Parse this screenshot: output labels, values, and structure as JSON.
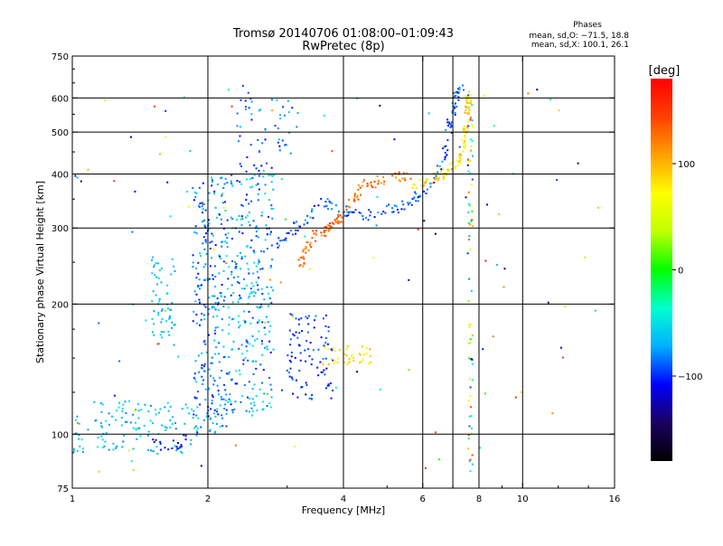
{
  "chart_data": {
    "type": "scatter",
    "title": "Tromsø 20140706 01:08:00–01:09:43",
    "subtitle": "RwPretec (8p)",
    "xlabel": "Frequency [MHz]",
    "ylabel": "Stationary phase Virtual Height [km]",
    "xscale": "log",
    "yscale": "log",
    "xlim": [
      1,
      16
    ],
    "ylim": [
      75,
      750
    ],
    "x_ticks": [
      1,
      2,
      4,
      6,
      8,
      10,
      16
    ],
    "x_tick_labels": [
      "1",
      "2",
      "4",
      "6",
      "8",
      "10",
      "16"
    ],
    "x_grid": [
      2,
      4,
      6,
      7,
      8,
      10
    ],
    "y_ticks": [
      75,
      100,
      200,
      300,
      400,
      500,
      600,
      750
    ],
    "y_tick_labels": [
      "75",
      "100",
      "200",
      "300",
      "400",
      "500",
      "600",
      "750"
    ],
    "y_grid": [
      100,
      200,
      300,
      400,
      500,
      600
    ],
    "grid": true,
    "stats": {
      "heading": "Phases",
      "line1": "mean, sd,O: −71.5, 18.8",
      "line2": "mean, sd,X: 100.1, 26.1"
    },
    "colorbar": {
      "label": "[deg]",
      "range": [
        -180,
        180
      ],
      "ticks": [
        100,
        0,
        -100
      ],
      "tick_labels": [
        "100",
        "0",
        "−100"
      ],
      "colormap": "rainbow",
      "stops": [
        "#000000",
        "#1a0060",
        "#0000ff",
        "#00b0ff",
        "#00ffd0",
        "#00ff00",
        "#c0ff00",
        "#ffff00",
        "#ffa000",
        "#ff4000",
        "#ff0000"
      ]
    },
    "groups": [
      {
        "name": "low-freq cyan traces",
        "freq": [
          1.0,
          1.9
        ],
        "height": [
          90,
          120
        ],
        "phase": [
          -85,
          -40
        ],
        "n": 130,
        "shape": "band"
      },
      {
        "name": "low-freq upper streak",
        "freq": [
          1.5,
          1.7
        ],
        "height": [
          160,
          260
        ],
        "phase": [
          -75,
          -50
        ],
        "n": 60,
        "shape": "band"
      },
      {
        "name": "low-freq bottom dark",
        "freq": [
          1.5,
          1.8
        ],
        "height": [
          92,
          100
        ],
        "phase": [
          -120,
          -100
        ],
        "n": 20,
        "shape": "band"
      },
      {
        "name": "vertical column 2 MHz",
        "freq": [
          1.85,
          2.2
        ],
        "height": [
          100,
          400
        ],
        "phase": [
          -110,
          -50
        ],
        "n": 260,
        "shape": "band"
      },
      {
        "name": "vertical column 2.4 MHz",
        "freq": [
          2.2,
          2.8
        ],
        "height": [
          110,
          420
        ],
        "phase": [
          -110,
          -40
        ],
        "n": 300,
        "shape": "band"
      },
      {
        "name": "high echoes near 2.5 MHz",
        "freq": [
          2.3,
          3.2
        ],
        "height": [
          420,
          620
        ],
        "phase": [
          -110,
          -60
        ],
        "n": 50,
        "shape": "band"
      },
      {
        "name": "F trace blue",
        "points": [
          [
            2.8,
            275
          ],
          [
            3.2,
            305
          ],
          [
            3.6,
            345
          ],
          [
            4.0,
            330
          ],
          [
            4.5,
            320
          ],
          [
            5.0,
            330
          ],
          [
            5.5,
            340
          ],
          [
            6.0,
            360
          ],
          [
            6.4,
            390
          ],
          [
            6.7,
            440
          ],
          [
            6.9,
            520
          ],
          [
            7.1,
            600
          ],
          [
            7.3,
            640
          ]
        ],
        "phase": [
          -115,
          -70
        ],
        "n": 170,
        "shape": "curve",
        "spread": 0.035
      },
      {
        "name": "F trace orange",
        "points": [
          [
            3.2,
            245
          ],
          [
            3.4,
            285
          ],
          [
            3.7,
            300
          ],
          [
            4.0,
            320
          ],
          [
            4.4,
            375
          ],
          [
            5.0,
            390
          ],
          [
            5.6,
            395
          ]
        ],
        "phase": [
          105,
          150
        ],
        "n": 120,
        "shape": "curve",
        "spread": 0.035
      },
      {
        "name": "F trace yellow-green",
        "points": [
          [
            5.6,
            370
          ],
          [
            6.2,
            385
          ],
          [
            6.8,
            405
          ],
          [
            7.3,
            440
          ],
          [
            7.5,
            520
          ],
          [
            7.6,
            620
          ]
        ],
        "phase": [
          60,
          110
        ],
        "n": 110,
        "shape": "curve",
        "spread": 0.03
      },
      {
        "name": "mid blue cluster",
        "freq": [
          3.0,
          3.8
        ],
        "height": [
          120,
          190
        ],
        "phase": [
          -115,
          -80
        ],
        "n": 90,
        "shape": "band"
      },
      {
        "name": "yellow cluster",
        "freq": [
          3.6,
          4.6
        ],
        "height": [
          145,
          160
        ],
        "phase": [
          70,
          100
        ],
        "n": 40,
        "shape": "band"
      },
      {
        "name": "vertical line 7.6 MHz",
        "freq": [
          7.55,
          7.75
        ],
        "height": [
          80,
          640
        ],
        "phase": [
          -120,
          150
        ],
        "n": 70,
        "shape": "band"
      },
      {
        "name": "scattered noise",
        "freq": [
          1.0,
          15.0
        ],
        "height": [
          80,
          650
        ],
        "phase": [
          -160,
          170
        ],
        "n": 120,
        "shape": "band"
      }
    ]
  }
}
